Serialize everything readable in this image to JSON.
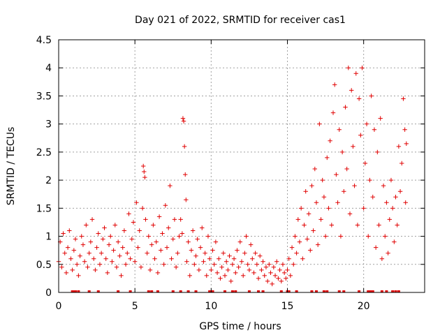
{
  "chart_data": {
    "type": "scatter",
    "title": "Day 021 of 2022, SRMTID for receiver cas1",
    "xlabel": "GPS time / hours",
    "ylabel": "SRMTID / TECUs",
    "xlim": [
      0,
      24
    ],
    "ylim": [
      0,
      4.5
    ],
    "x_ticks": [
      0,
      5,
      10,
      15,
      20
    ],
    "x_tick_labels": [
      "0",
      "5",
      "10",
      "15",
      "20"
    ],
    "y_ticks": [
      0,
      0.5,
      1,
      1.5,
      2,
      2.5,
      3,
      3.5,
      4,
      4.5
    ],
    "y_tick_labels": [
      "0",
      "0.5",
      "1",
      "1.5",
      "2",
      "2.5",
      "3",
      "3.5",
      "4",
      "4.5"
    ],
    "grid": true,
    "marker": "+",
    "series": [
      {
        "name": "SRMTID",
        "color": "#e00000",
        "points": [
          [
            0.0,
            0.55
          ],
          [
            0.1,
            0.9
          ],
          [
            0.2,
            0.45
          ],
          [
            0.3,
            1.05
          ],
          [
            0.4,
            0.7
          ],
          [
            0.5,
            0.35
          ],
          [
            0.6,
            0.8
          ],
          [
            0.7,
            1.1
          ],
          [
            0.8,
            0.6
          ],
          [
            0.9,
            0.4
          ],
          [
            1.0,
            0.75
          ],
          [
            1.1,
            0.95
          ],
          [
            1.2,
            0.5
          ],
          [
            1.3,
            0.3
          ],
          [
            1.4,
            0.65
          ],
          [
            1.5,
            1.0
          ],
          [
            1.6,
            0.85
          ],
          [
            1.7,
            0.55
          ],
          [
            1.8,
            1.2
          ],
          [
            1.9,
            0.45
          ],
          [
            2.0,
            0.7
          ],
          [
            2.1,
            0.9
          ],
          [
            2.2,
            1.3
          ],
          [
            2.3,
            0.6
          ],
          [
            2.4,
            0.4
          ],
          [
            2.5,
            0.8
          ],
          [
            2.6,
            1.05
          ],
          [
            2.7,
            0.5
          ],
          [
            2.8,
            0.7
          ],
          [
            2.9,
            0.95
          ],
          [
            3.0,
            1.15
          ],
          [
            3.1,
            0.6
          ],
          [
            3.2,
            0.35
          ],
          [
            3.3,
            0.85
          ],
          [
            3.4,
            1.0
          ],
          [
            3.5,
            0.55
          ],
          [
            3.6,
            0.75
          ],
          [
            3.7,
            1.2
          ],
          [
            3.8,
            0.45
          ],
          [
            3.9,
            0.9
          ],
          [
            4.0,
            0.65
          ],
          [
            4.1,
            0.3
          ],
          [
            4.2,
            0.8
          ],
          [
            4.3,
            1.1
          ],
          [
            4.4,
            0.5
          ],
          [
            4.5,
            0.7
          ],
          [
            4.6,
            1.4
          ],
          [
            4.7,
            0.6
          ],
          [
            4.8,
            0.95
          ],
          [
            4.9,
            1.25
          ],
          [
            5.0,
            0.55
          ],
          [
            5.1,
            1.6
          ],
          [
            5.2,
            0.8
          ],
          [
            5.3,
            1.1
          ],
          [
            5.4,
            0.45
          ],
          [
            5.5,
            1.5
          ],
          [
            5.55,
            2.25
          ],
          [
            5.6,
            2.15
          ],
          [
            5.65,
            2.05
          ],
          [
            5.7,
            1.3
          ],
          [
            5.8,
            0.7
          ],
          [
            5.9,
            1.0
          ],
          [
            6.0,
            0.4
          ],
          [
            6.1,
            0.85
          ],
          [
            6.2,
            1.2
          ],
          [
            6.3,
            0.6
          ],
          [
            6.4,
            0.9
          ],
          [
            6.5,
            0.35
          ],
          [
            6.6,
            1.35
          ],
          [
            6.7,
            0.75
          ],
          [
            6.8,
            1.05
          ],
          [
            6.9,
            0.5
          ],
          [
            7.0,
            1.55
          ],
          [
            7.1,
            0.8
          ],
          [
            7.2,
            1.15
          ],
          [
            7.3,
            1.9
          ],
          [
            7.4,
            0.6
          ],
          [
            7.5,
            0.95
          ],
          [
            7.6,
            1.3
          ],
          [
            7.7,
            0.45
          ],
          [
            7.8,
            0.7
          ],
          [
            7.9,
            1.0
          ],
          [
            8.0,
            1.3
          ],
          [
            8.1,
            1.05
          ],
          [
            8.15,
            3.1
          ],
          [
            8.2,
            3.05
          ],
          [
            8.25,
            2.6
          ],
          [
            8.3,
            2.1
          ],
          [
            8.35,
            1.65
          ],
          [
            8.4,
            0.55
          ],
          [
            8.5,
            0.9
          ],
          [
            8.6,
            0.3
          ],
          [
            8.7,
            0.75
          ],
          [
            8.8,
            1.1
          ],
          [
            8.9,
            0.5
          ],
          [
            9.0,
            0.65
          ],
          [
            9.1,
            0.95
          ],
          [
            9.2,
            0.4
          ],
          [
            9.3,
            0.8
          ],
          [
            9.4,
            1.15
          ],
          [
            9.5,
            0.55
          ],
          [
            9.6,
            0.7
          ],
          [
            9.7,
            0.3
          ],
          [
            9.8,
            1.0
          ],
          [
            9.9,
            0.6
          ],
          [
            10.0,
            0.4
          ],
          [
            10.1,
            0.75
          ],
          [
            10.2,
            0.5
          ],
          [
            10.3,
            0.9
          ],
          [
            10.4,
            0.35
          ],
          [
            10.5,
            0.6
          ],
          [
            10.6,
            0.25
          ],
          [
            10.7,
            0.45
          ],
          [
            10.8,
            0.7
          ],
          [
            10.9,
            0.3
          ],
          [
            11.0,
            0.55
          ],
          [
            11.1,
            0.4
          ],
          [
            11.2,
            0.65
          ],
          [
            11.3,
            0.2
          ],
          [
            11.4,
            0.5
          ],
          [
            11.5,
            0.6
          ],
          [
            11.6,
            0.35
          ],
          [
            11.7,
            0.75
          ],
          [
            11.8,
            0.45
          ],
          [
            11.9,
            0.9
          ],
          [
            12.0,
            0.55
          ],
          [
            12.1,
            0.3
          ],
          [
            12.2,
            0.7
          ],
          [
            12.3,
            1.0
          ],
          [
            12.4,
            0.5
          ],
          [
            12.5,
            0.4
          ],
          [
            12.6,
            0.85
          ],
          [
            12.7,
            0.6
          ],
          [
            12.8,
            0.35
          ],
          [
            12.9,
            0.7
          ],
          [
            13.0,
            0.5
          ],
          [
            13.1,
            0.25
          ],
          [
            13.2,
            0.65
          ],
          [
            13.3,
            0.4
          ],
          [
            13.4,
            0.55
          ],
          [
            13.5,
            0.3
          ],
          [
            13.6,
            0.45
          ],
          [
            13.7,
            0.2
          ],
          [
            13.8,
            0.5
          ],
          [
            13.9,
            0.35
          ],
          [
            14.0,
            0.15
          ],
          [
            14.1,
            0.45
          ],
          [
            14.2,
            0.3
          ],
          [
            14.3,
            0.55
          ],
          [
            14.4,
            0.25
          ],
          [
            14.5,
            0.4
          ],
          [
            14.6,
            0.2
          ],
          [
            14.7,
            0.5
          ],
          [
            14.8,
            0.35
          ],
          [
            14.9,
            0.25
          ],
          [
            15.0,
            0.4
          ],
          [
            15.1,
            0.6
          ],
          [
            15.2,
            0.3
          ],
          [
            15.3,
            0.8
          ],
          [
            15.4,
            0.5
          ],
          [
            15.5,
            1.0
          ],
          [
            15.6,
            0.7
          ],
          [
            15.7,
            1.3
          ],
          [
            15.8,
            0.9
          ],
          [
            15.9,
            1.5
          ],
          [
            16.0,
            0.6
          ],
          [
            16.1,
            1.2
          ],
          [
            16.2,
            1.8
          ],
          [
            16.3,
            0.95
          ],
          [
            16.4,
            1.4
          ],
          [
            16.5,
            0.75
          ],
          [
            16.6,
            1.9
          ],
          [
            16.7,
            1.1
          ],
          [
            16.8,
            2.2
          ],
          [
            16.9,
            1.6
          ],
          [
            17.0,
            0.85
          ],
          [
            17.1,
            3.0
          ],
          [
            17.2,
            1.3
          ],
          [
            17.3,
            2.0
          ],
          [
            17.4,
            1.7
          ],
          [
            17.5,
            1.0
          ],
          [
            17.6,
            2.4
          ],
          [
            17.7,
            1.5
          ],
          [
            17.8,
            2.7
          ],
          [
            17.9,
            1.2
          ],
          [
            18.0,
            3.2
          ],
          [
            18.1,
            3.7
          ],
          [
            18.2,
            2.1
          ],
          [
            18.3,
            1.6
          ],
          [
            18.4,
            2.9
          ],
          [
            18.5,
            1.0
          ],
          [
            18.6,
            2.5
          ],
          [
            18.7,
            1.8
          ],
          [
            18.8,
            3.3
          ],
          [
            18.9,
            2.2
          ],
          [
            19.0,
            4.0
          ],
          [
            19.1,
            1.4
          ],
          [
            19.2,
            3.6
          ],
          [
            19.3,
            2.6
          ],
          [
            19.4,
            1.9
          ],
          [
            19.5,
            3.9
          ],
          [
            19.6,
            1.2
          ],
          [
            19.7,
            3.45
          ],
          [
            19.8,
            2.8
          ],
          [
            19.9,
            4.0
          ],
          [
            20.0,
            1.5
          ],
          [
            20.1,
            2.3
          ],
          [
            20.2,
            3.0
          ],
          [
            20.3,
            1.0
          ],
          [
            20.4,
            2.0
          ],
          [
            20.5,
            3.5
          ],
          [
            20.6,
            1.7
          ],
          [
            20.7,
            2.9
          ],
          [
            20.8,
            0.8
          ],
          [
            20.9,
            2.5
          ],
          [
            21.0,
            1.2
          ],
          [
            21.1,
            3.1
          ],
          [
            21.2,
            0.6
          ],
          [
            21.3,
            1.9
          ],
          [
            21.4,
            1.0
          ],
          [
            21.5,
            1.6
          ],
          [
            21.6,
            0.7
          ],
          [
            21.7,
            1.3
          ],
          [
            21.8,
            2.0
          ],
          [
            21.9,
            1.5
          ],
          [
            22.0,
            0.9
          ],
          [
            22.1,
            1.7
          ],
          [
            22.2,
            1.2
          ],
          [
            22.3,
            2.6
          ],
          [
            22.4,
            1.8
          ],
          [
            22.5,
            2.3
          ],
          [
            22.6,
            3.45
          ],
          [
            22.7,
            2.9
          ],
          [
            22.75,
            1.6
          ],
          [
            22.8,
            2.65
          ]
        ],
        "zero_marks_x": [
          0.9,
          1.0,
          1.1,
          1.3,
          2.0,
          2.6,
          3.9,
          4.7,
          5.9,
          6.1,
          6.5,
          7.5,
          8.0,
          8.5,
          9.0,
          9.9,
          10.1,
          10.9,
          11.4,
          11.6,
          12.5,
          13.1,
          13.4,
          14.6,
          15.0,
          15.1,
          15.6,
          16.6,
          16.9,
          17.4,
          17.6,
          18.4,
          18.7,
          19.7,
          20.3,
          20.4,
          20.5,
          20.6,
          21.2,
          21.5,
          21.9,
          22.1,
          22.3
        ]
      }
    ]
  }
}
